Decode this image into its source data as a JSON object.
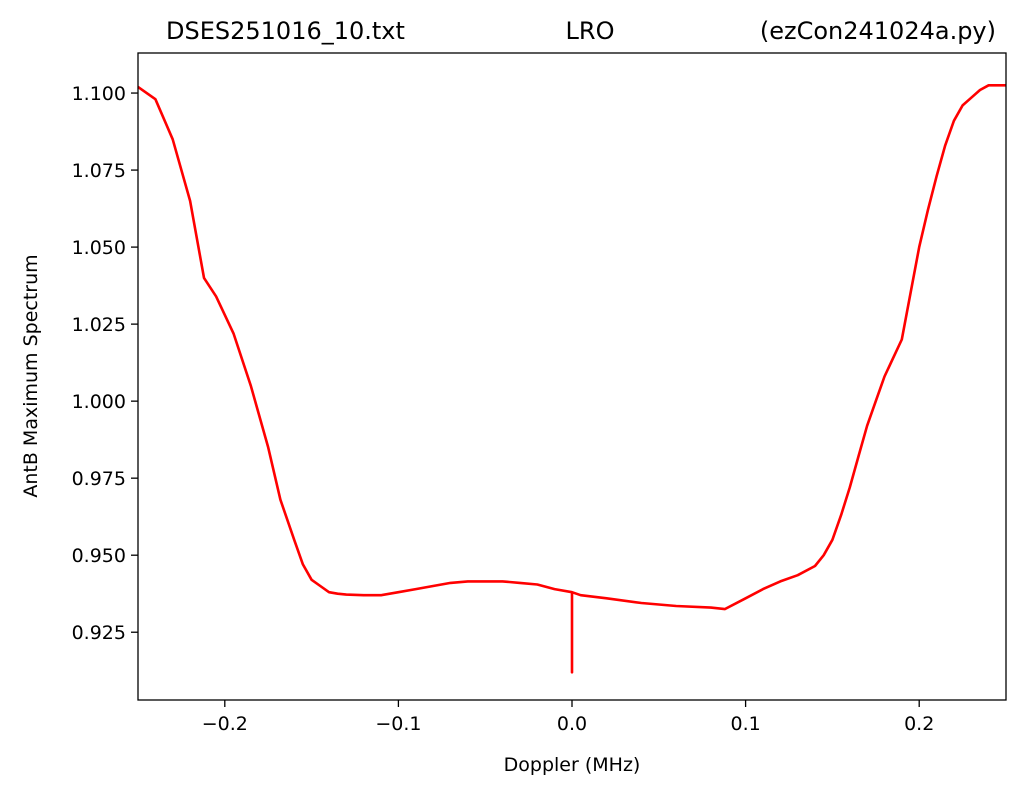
{
  "chart_data": {
    "type": "line",
    "title_left": "DSES251016_10.txt",
    "title_center": "LRO",
    "title_right": "(ezCon241024a.py)",
    "xlabel": "Doppler (MHz)",
    "ylabel": "AntB Maximum Spectrum",
    "xlim": [
      -0.25,
      0.25
    ],
    "ylim": [
      0.903,
      1.113
    ],
    "xticks": [
      -0.2,
      -0.1,
      0.0,
      0.1,
      0.2
    ],
    "xtick_labels": [
      "−0.2",
      "−0.1",
      "0.0",
      "0.1",
      "0.2"
    ],
    "yticks": [
      0.925,
      0.95,
      0.975,
      1.0,
      1.025,
      1.05,
      1.075,
      1.1
    ],
    "ytick_labels": [
      "0.925",
      "0.950",
      "0.975",
      "1.000",
      "1.025",
      "1.050",
      "1.075",
      "1.100"
    ],
    "grid": false,
    "series": [
      {
        "color": "#ff0000",
        "x": [
          -0.25,
          -0.24,
          -0.23,
          -0.22,
          -0.212,
          -0.205,
          -0.195,
          -0.185,
          -0.175,
          -0.168,
          -0.16,
          -0.155,
          -0.15,
          -0.145,
          -0.14,
          -0.135,
          -0.13,
          -0.12,
          -0.11,
          -0.1,
          -0.09,
          -0.08,
          -0.07,
          -0.06,
          -0.05,
          -0.04,
          -0.03,
          -0.02,
          -0.01,
          0.0,
          0.0,
          0.0,
          0.005,
          0.02,
          0.04,
          0.06,
          0.08,
          0.088,
          0.1,
          0.11,
          0.12,
          0.13,
          0.14,
          0.145,
          0.15,
          0.155,
          0.16,
          0.165,
          0.17,
          0.175,
          0.18,
          0.19,
          0.195,
          0.2,
          0.205,
          0.21,
          0.215,
          0.22,
          0.225,
          0.23,
          0.235,
          0.24,
          0.245,
          0.25
        ],
        "y": [
          1.102,
          1.098,
          1.085,
          1.065,
          1.04,
          1.034,
          1.022,
          1.005,
          0.985,
          0.968,
          0.955,
          0.947,
          0.942,
          0.94,
          0.938,
          0.9375,
          0.9372,
          0.937,
          0.937,
          0.938,
          0.939,
          0.94,
          0.941,
          0.9415,
          0.9415,
          0.9415,
          0.941,
          0.9405,
          0.939,
          0.938,
          0.912,
          0.938,
          0.937,
          0.936,
          0.9345,
          0.9335,
          0.933,
          0.9325,
          0.936,
          0.939,
          0.9415,
          0.9435,
          0.9465,
          0.95,
          0.955,
          0.963,
          0.972,
          0.982,
          0.992,
          1.0,
          1.008,
          1.02,
          1.035,
          1.05,
          1.062,
          1.073,
          1.083,
          1.091,
          1.096,
          1.0985,
          1.101,
          1.1025,
          1.1025,
          1.1025
        ]
      }
    ]
  }
}
